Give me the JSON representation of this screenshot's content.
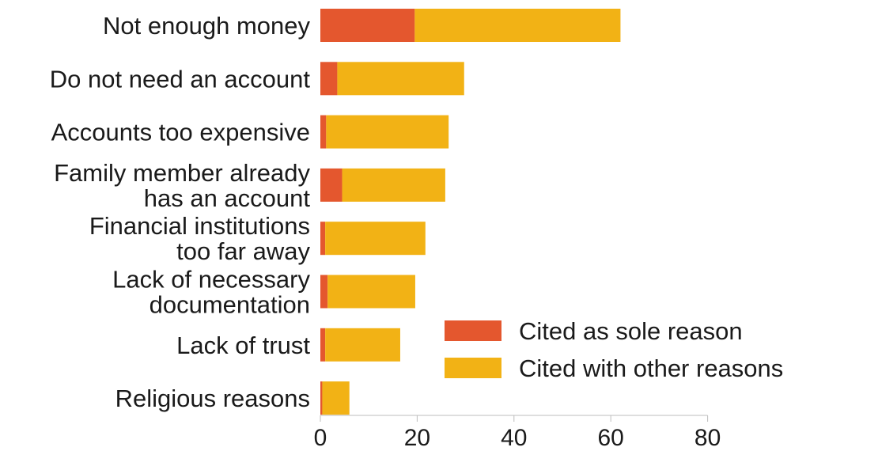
{
  "chart_data": {
    "type": "bar",
    "orientation": "horizontal",
    "stacked": true,
    "categories": [
      [
        "Not enough money"
      ],
      [
        "Do not need an account"
      ],
      [
        "Accounts too expensive"
      ],
      [
        "Family member already",
        "has an account"
      ],
      [
        "Financial institutions",
        "too far away"
      ],
      [
        "Lack of necessary",
        "documentation"
      ],
      [
        "Lack of trust"
      ],
      [
        "Religious reasons"
      ]
    ],
    "series": [
      {
        "name": "Cited as sole reason",
        "color": "#e4572e",
        "values": [
          19.5,
          3.5,
          1.2,
          4.5,
          1.0,
          1.5,
          1.0,
          0.4
        ]
      },
      {
        "name": "Cited with other reasons",
        "color": "#f2b215",
        "values": [
          42.5,
          26.2,
          25.3,
          21.3,
          20.7,
          18.1,
          15.5,
          5.6
        ]
      }
    ],
    "xlim": [
      0,
      80
    ],
    "xticks": [
      0,
      20,
      40,
      60,
      80
    ],
    "title": "",
    "xlabel": "",
    "ylabel": "",
    "grid": false,
    "legend_position": "bottom-right"
  }
}
